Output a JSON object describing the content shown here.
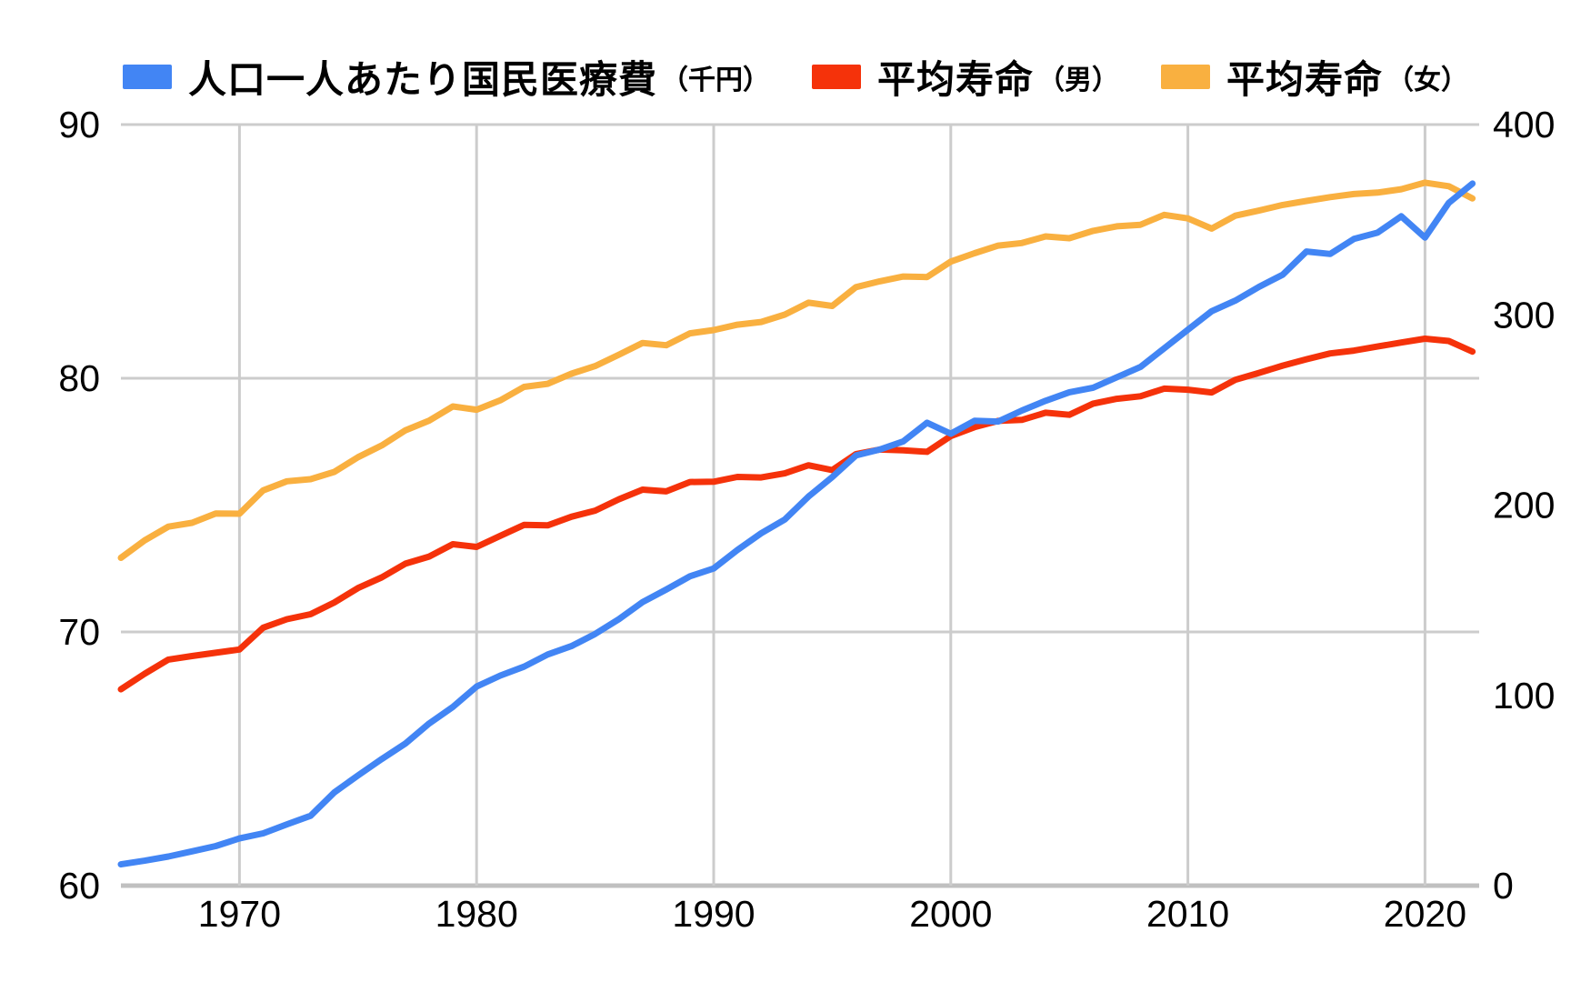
{
  "page": {
    "background": "#ffffff"
  },
  "legend": {
    "items": [
      {
        "key": "medical",
        "label": "人口一人あたり国民医療費",
        "sublabel": "（千円）",
        "color": "#4285F4"
      },
      {
        "key": "male",
        "label": "平均寿命",
        "sublabel": "（男）",
        "color": "#F5320A"
      },
      {
        "key": "female",
        "label": "平均寿命",
        "sublabel": "（女）",
        "color": "#F9B040"
      }
    ]
  },
  "chart_data": {
    "type": "line",
    "legend_position": "top",
    "grid": {
      "color": "#cccccc",
      "axis_line_color": "#c0c0c0"
    },
    "x_axis": {
      "range": [
        1965,
        2022.2
      ],
      "ticks": [
        1970,
        1980,
        1990,
        2000,
        2010,
        2020
      ]
    },
    "left_axis": {
      "range": [
        60,
        90
      ],
      "ticks": [
        90,
        80,
        70,
        60
      ]
    },
    "right_axis": {
      "range": [
        0,
        400
      ],
      "ticks": [
        400,
        300,
        200,
        100,
        0
      ]
    },
    "years": [
      1965,
      1966,
      1967,
      1968,
      1969,
      1970,
      1971,
      1972,
      1973,
      1974,
      1975,
      1976,
      1977,
      1978,
      1979,
      1980,
      1981,
      1982,
      1983,
      1984,
      1985,
      1986,
      1987,
      1988,
      1989,
      1990,
      1991,
      1992,
      1993,
      1994,
      1995,
      1996,
      1997,
      1998,
      1999,
      2000,
      2001,
      2002,
      2003,
      2004,
      2005,
      2006,
      2007,
      2008,
      2009,
      2010,
      2011,
      2012,
      2013,
      2014,
      2015,
      2016,
      2017,
      2018,
      2019,
      2020,
      2021,
      2022
    ],
    "series": [
      {
        "key": "medical",
        "name": "人口一人あたり国民医療費（千円）",
        "axis": "right",
        "color": "#4285F4",
        "values": [
          11.2,
          13.1,
          15.3,
          18.0,
          20.8,
          24.8,
          27.5,
          32.2,
          36.7,
          49.0,
          57.9,
          66.5,
          74.7,
          85.2,
          93.9,
          104.6,
          110.4,
          115.1,
          121.5,
          125.9,
          132.3,
          140.0,
          149.0,
          155.6,
          162.6,
          166.7,
          176.4,
          185.2,
          192.4,
          204.5,
          214.7,
          226.1,
          229.2,
          233.5,
          243.3,
          237.5,
          244.3,
          243.9,
          249.7,
          254.8,
          259.3,
          261.7,
          267.2,
          272.6,
          282.4,
          292.2,
          301.9,
          307.5,
          314.7,
          321.1,
          333.3,
          332.0,
          339.9,
          343.2,
          351.8,
          340.6,
          358.8,
          369.0
        ]
      },
      {
        "key": "male",
        "name": "平均寿命（男）",
        "axis": "left",
        "color": "#F5320A",
        "values": [
          67.74,
          68.35,
          68.91,
          69.05,
          69.18,
          69.31,
          70.17,
          70.5,
          70.7,
          71.16,
          71.73,
          72.15,
          72.69,
          72.97,
          73.46,
          73.35,
          73.79,
          74.22,
          74.2,
          74.54,
          74.78,
          75.23,
          75.61,
          75.54,
          75.91,
          75.92,
          76.11,
          76.09,
          76.25,
          76.57,
          76.38,
          77.01,
          77.19,
          77.16,
          77.1,
          77.72,
          78.07,
          78.32,
          78.36,
          78.64,
          78.56,
          79.0,
          79.19,
          79.29,
          79.59,
          79.55,
          79.44,
          79.94,
          80.21,
          80.5,
          80.75,
          80.98,
          81.09,
          81.25,
          81.41,
          81.56,
          81.47,
          81.05
        ]
      },
      {
        "key": "female",
        "name": "平均寿命（女）",
        "axis": "left",
        "color": "#F9B040",
        "values": [
          72.92,
          73.61,
          74.15,
          74.3,
          74.67,
          74.66,
          75.58,
          75.94,
          76.02,
          76.31,
          76.89,
          77.35,
          77.95,
          78.33,
          78.89,
          78.76,
          79.13,
          79.66,
          79.78,
          80.18,
          80.48,
          80.93,
          81.39,
          81.3,
          81.77,
          81.9,
          82.11,
          82.22,
          82.51,
          82.98,
          82.85,
          83.59,
          83.82,
          84.01,
          83.99,
          84.6,
          84.93,
          85.23,
          85.33,
          85.59,
          85.52,
          85.81,
          85.99,
          86.05,
          86.44,
          86.3,
          85.9,
          86.41,
          86.61,
          86.83,
          86.99,
          87.14,
          87.26,
          87.32,
          87.45,
          87.71,
          87.57,
          87.09
        ]
      }
    ]
  }
}
